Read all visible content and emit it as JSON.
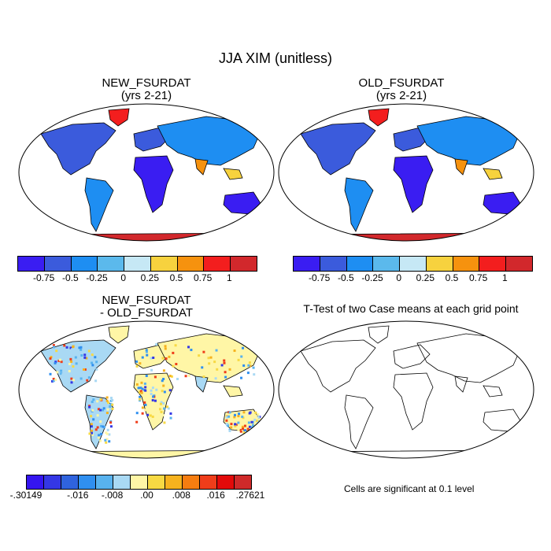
{
  "title": "JJA XIM (unitless)",
  "panels": [
    {
      "id": "new",
      "title_line1": "NEW_FSURDAT",
      "title_line2": "(yrs 2-21)"
    },
    {
      "id": "old",
      "title_line1": "OLD_FSURDAT",
      "title_line2": "(yrs 2-21)"
    },
    {
      "id": "diff",
      "title_line1": "NEW_FSURDAT",
      "title_line2": "- OLD_FSURDAT"
    },
    {
      "id": "ttest",
      "title_line1": "T-Test of two Case means at each grid point",
      "title_line2": ""
    }
  ],
  "colorbar_main": {
    "colors": [
      "#3a1df2",
      "#3b5bdc",
      "#1e8ef2",
      "#5bb9ec",
      "#c6e8f5",
      "#f7d23e",
      "#f6920e",
      "#f31e1e",
      "#d2282c"
    ],
    "labels": [
      "-0.75",
      "-0.5",
      "-0.25",
      "0",
      "0.25",
      "0.5",
      "0.75",
      "1"
    ]
  },
  "colorbar_diff": {
    "colors": [
      "#3515f0",
      "#3437e5",
      "#2f63de",
      "#2f8ff0",
      "#58b2ee",
      "#a9d9f4",
      "#fff6a6",
      "#f7d943",
      "#f6b21e",
      "#f67d10",
      "#ef3d1a",
      "#e30a0a",
      "#cf2a2a"
    ],
    "labels": [
      "-.30149",
      "-.016",
      "-.008",
      ".00",
      ".008",
      ".016",
      ".27621"
    ]
  },
  "significance_note": "Cells are significant at 0.1 level"
}
